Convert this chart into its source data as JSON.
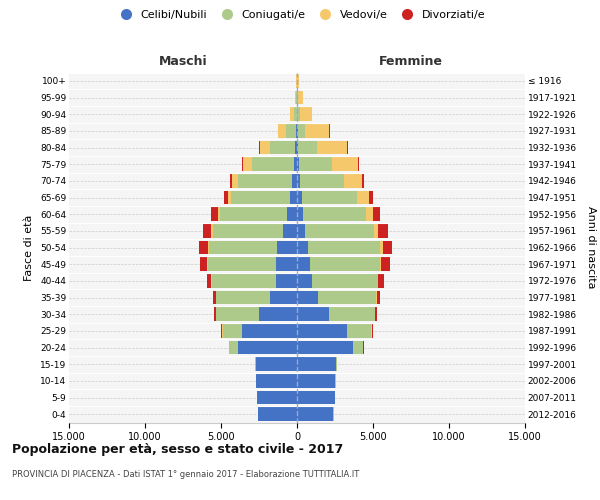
{
  "age_groups": [
    "0-4",
    "5-9",
    "10-14",
    "15-19",
    "20-24",
    "25-29",
    "30-34",
    "35-39",
    "40-44",
    "45-49",
    "50-54",
    "55-59",
    "60-64",
    "65-69",
    "70-74",
    "75-79",
    "80-84",
    "85-89",
    "90-94",
    "95-99",
    "100+"
  ],
  "birth_years": [
    "2012-2016",
    "2007-2011",
    "2002-2006",
    "1997-2001",
    "1992-1996",
    "1987-1991",
    "1982-1986",
    "1977-1981",
    "1972-1976",
    "1967-1971",
    "1962-1966",
    "1957-1961",
    "1952-1956",
    "1947-1951",
    "1942-1946",
    "1937-1941",
    "1932-1936",
    "1927-1931",
    "1922-1926",
    "1917-1921",
    "≤ 1916"
  ],
  "colors": {
    "celibi": "#4472C4",
    "coniugati": "#AECA8A",
    "vedovi": "#F5C96B",
    "divorziati": "#CC2222"
  },
  "legend_labels": [
    "Celibi/Nubili",
    "Coniugati/e",
    "Vedovi/e",
    "Divorziati/e"
  ],
  "legend_colors": [
    "#4472C4",
    "#AECA8A",
    "#F5C96B",
    "#CC2222"
  ],
  "males": {
    "celibi": [
      2550,
      2620,
      2680,
      2720,
      3900,
      3600,
      2500,
      1800,
      1400,
      1350,
      1300,
      950,
      680,
      450,
      300,
      170,
      100,
      45,
      15,
      5,
      1
    ],
    "coniugati": [
      10,
      15,
      15,
      60,
      550,
      1300,
      2800,
      3500,
      4200,
      4500,
      4500,
      4600,
      4400,
      3900,
      3600,
      2800,
      1700,
      700,
      200,
      55,
      8
    ],
    "vedovi": [
      2,
      2,
      2,
      2,
      5,
      10,
      15,
      20,
      30,
      45,
      70,
      110,
      150,
      220,
      350,
      550,
      650,
      520,
      220,
      90,
      25
    ],
    "divorziati": [
      5,
      5,
      5,
      10,
      35,
      90,
      130,
      200,
      320,
      500,
      600,
      550,
      400,
      260,
      160,
      85,
      35,
      12,
      5,
      2,
      1
    ]
  },
  "females": {
    "nubili": [
      2400,
      2480,
      2530,
      2580,
      3700,
      3300,
      2100,
      1400,
      1000,
      850,
      750,
      550,
      420,
      320,
      220,
      110,
      60,
      35,
      18,
      7,
      2
    ],
    "coniugate": [
      10,
      15,
      15,
      60,
      650,
      1600,
      3000,
      3800,
      4300,
      4600,
      4700,
      4500,
      4100,
      3600,
      2900,
      2200,
      1250,
      500,
      150,
      38,
      7
    ],
    "vedove": [
      2,
      2,
      2,
      2,
      5,
      10,
      15,
      35,
      60,
      100,
      180,
      300,
      500,
      800,
      1150,
      1700,
      2000,
      1600,
      800,
      340,
      90
    ],
    "divorziate": [
      5,
      5,
      5,
      10,
      45,
      110,
      170,
      240,
      380,
      560,
      650,
      620,
      450,
      300,
      170,
      90,
      35,
      12,
      5,
      2,
      1
    ]
  },
  "xlim": 15000,
  "xticks": [
    -15000,
    -10000,
    -5000,
    0,
    5000,
    10000,
    15000
  ],
  "xticklabels": [
    "15.000",
    "10.000",
    "5.000",
    "0",
    "5.000",
    "10.000",
    "15.000"
  ],
  "title": "Popolazione per età, sesso e stato civile - 2017",
  "subtitle": "PROVINCIA DI PIACENZA - Dati ISTAT 1° gennaio 2017 - Elaborazione TUTTITALIA.IT",
  "ylabel_left": "Fasce di età",
  "ylabel_right": "Anni di nascita",
  "header_maschi": "Maschi",
  "header_femmine": "Femmine",
  "bg_color": "#f5f5f5",
  "grid_color": "#cccccc"
}
